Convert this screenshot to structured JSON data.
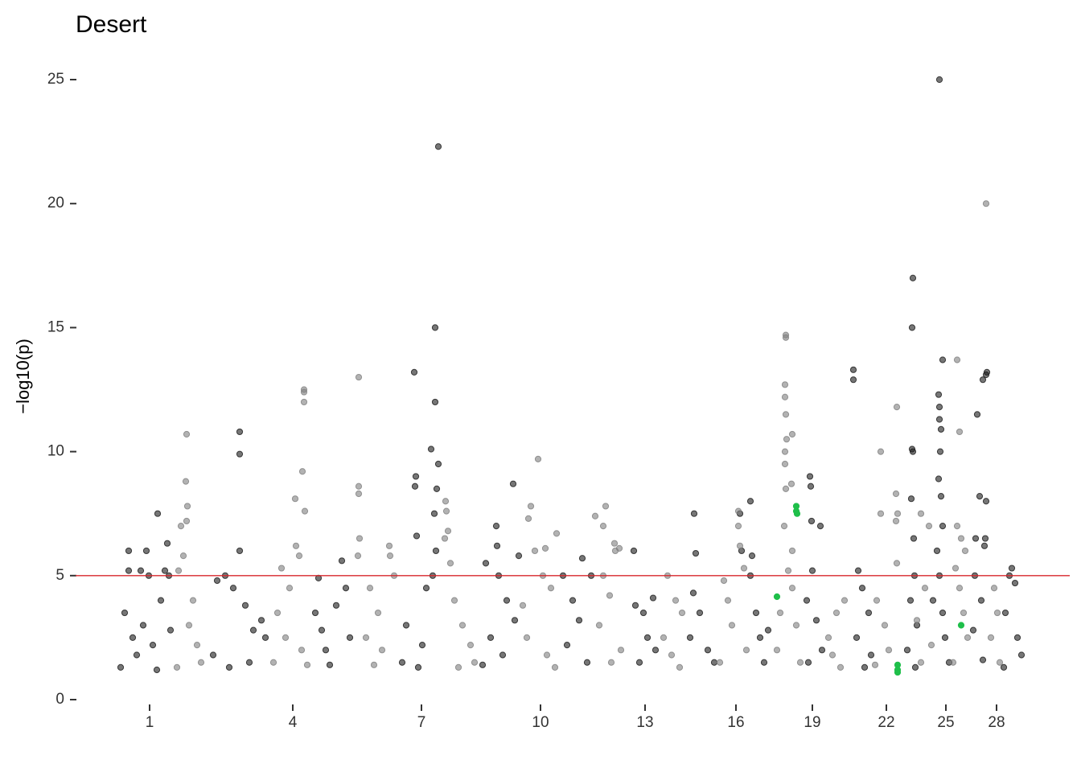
{
  "chart_data": {
    "type": "scatter",
    "title": "Desert",
    "y_label": "−log10(p)",
    "xlim": [
      140,
      1280
    ],
    "xticks": [
      {
        "value": 186,
        "label": "1"
      },
      {
        "value": 364,
        "label": "4"
      },
      {
        "value": 524,
        "label": "7"
      },
      {
        "value": 672,
        "label": "10"
      },
      {
        "value": 802,
        "label": "13"
      },
      {
        "value": 915,
        "label": "16"
      },
      {
        "value": 1010,
        "label": "19"
      },
      {
        "value": 1102,
        "label": "22"
      },
      {
        "value": 1176,
        "label": "25"
      },
      {
        "value": 1239,
        "label": "28"
      }
    ],
    "ylim": [
      0,
      26
    ],
    "yticks": [
      0,
      5,
      10,
      15,
      20,
      25
    ],
    "threshold": {
      "value": 5,
      "color": "#d7262b"
    },
    "series": [
      {
        "color": "#1a1a1a",
        "x": [
          160,
          160,
          175,
          182,
          185,
          196,
          205,
          208,
          210,
          155,
          165,
          170,
          178,
          190,
          200,
          212,
          150,
          195,
          298,
          298,
          298,
          270,
          280,
          290,
          305,
          315,
          325,
          265,
          285,
          310,
          330,
          396,
          392,
          400,
          405,
          425,
          430,
          418,
          435,
          410,
          515,
          517,
          516,
          518,
          545,
          541,
          541,
          536,
          545,
          543,
          540,
          542,
          530,
          538,
          505,
          525,
          500,
          520,
          604,
          617,
          618,
          620,
          630,
          638,
          645,
          610,
          625,
          600,
          640,
          700,
          724,
          735,
          712,
          720,
          705,
          730,
          790,
          800,
          812,
          788,
          815,
          795,
          805,
          863,
          865,
          862,
          870,
          858,
          880,
          888,
          920,
          922,
          933,
          935,
          933,
          940,
          945,
          955,
          950,
          1007,
          1008,
          1009,
          1020,
          1010,
          1003,
          1015,
          1022,
          1005,
          1061,
          1061,
          1067,
          1072,
          1080,
          1065,
          1083,
          1075,
          1135,
          1134,
          1134,
          1135,
          1133,
          1136,
          1137,
          1132,
          1140,
          1128,
          1138,
          1168,
          1172,
          1167,
          1168,
          1168,
          1170,
          1169,
          1167,
          1170,
          1172,
          1165,
          1168,
          1172,
          1175,
          1180,
          1160,
          1215,
          1218,
          1225,
          1224,
          1213,
          1212,
          1220,
          1210,
          1222,
          1227,
          1226,
          1222,
          1226,
          1258,
          1262,
          1255,
          1250,
          1265,
          1270,
          1248
        ],
        "values": [
          6.0,
          5.2,
          5.2,
          6.0,
          5.0,
          7.5,
          5.2,
          6.3,
          5.0,
          3.5,
          2.5,
          1.8,
          3.0,
          2.2,
          4.0,
          2.8,
          1.3,
          1.2,
          10.8,
          9.9,
          6.0,
          4.8,
          5.0,
          4.5,
          3.8,
          2.8,
          3.2,
          1.8,
          1.3,
          1.5,
          2.5,
          4.9,
          3.5,
          2.8,
          2.0,
          5.6,
          4.5,
          3.8,
          2.5,
          1.4,
          13.2,
          9.0,
          8.6,
          6.6,
          22.3,
          15.0,
          12.0,
          10.1,
          9.5,
          8.5,
          7.5,
          6.0,
          4.5,
          5.0,
          3.0,
          2.2,
          1.5,
          1.3,
          5.5,
          7.0,
          6.2,
          5.0,
          4.0,
          8.7,
          5.8,
          2.5,
          1.8,
          1.4,
          3.2,
          5.0,
          5.7,
          5.0,
          4.0,
          3.2,
          2.2,
          1.5,
          3.8,
          3.5,
          4.1,
          6.0,
          2.0,
          1.5,
          2.5,
          7.5,
          5.9,
          4.3,
          3.5,
          2.5,
          2.0,
          1.5,
          7.5,
          6.0,
          8.0,
          5.8,
          5.0,
          3.5,
          2.5,
          2.8,
          1.5,
          9.0,
          8.6,
          7.2,
          7.0,
          5.2,
          4.0,
          3.2,
          2.0,
          1.5,
          13.3,
          12.9,
          5.2,
          4.5,
          3.5,
          2.5,
          1.8,
          1.3,
          17.0,
          15.0,
          10.1,
          10.0,
          8.1,
          6.5,
          5.0,
          4.0,
          3.0,
          2.0,
          1.3,
          25.0,
          13.7,
          12.3,
          11.8,
          11.3,
          10.9,
          10.0,
          8.9,
          8.2,
          7.0,
          6.0,
          5.0,
          3.5,
          2.5,
          1.5,
          4.0,
          11.5,
          8.2,
          6.5,
          6.2,
          6.5,
          5.0,
          4.0,
          2.8,
          1.6,
          13.2,
          13.1,
          12.9,
          8.0,
          5.3,
          4.7,
          5.0,
          3.5,
          2.5,
          1.8,
          1.3
        ]
      },
      {
        "color": "#7f7f7f",
        "x": [
          232,
          231,
          233,
          232,
          225,
          228,
          222,
          240,
          235,
          245,
          250,
          220,
          378,
          378,
          378,
          376,
          379,
          367,
          368,
          372,
          350,
          360,
          345,
          355,
          375,
          382,
          340,
          446,
          446,
          446,
          447,
          445,
          484,
          485,
          490,
          460,
          470,
          455,
          475,
          465,
          554,
          555,
          557,
          553,
          560,
          565,
          575,
          585,
          590,
          570,
          669,
          660,
          657,
          665,
          678,
          692,
          675,
          685,
          650,
          655,
          680,
          690,
          753,
          750,
          740,
          764,
          765,
          770,
          750,
          758,
          745,
          772,
          760,
          830,
          840,
          848,
          825,
          835,
          845,
          918,
          918,
          920,
          925,
          900,
          905,
          910,
          928,
          895,
          977,
          977,
          976,
          976,
          977,
          978,
          976,
          985,
          976,
          977,
          984,
          975,
          985,
          980,
          985,
          970,
          990,
          966,
          995,
          1040,
          1030,
          1050,
          1035,
          1045,
          1095,
          1095,
          1090,
          1100,
          1105,
          1088,
          1115,
          1114,
          1116,
          1114,
          1115,
          1145,
          1155,
          1150,
          1140,
          1158,
          1145,
          1190,
          1193,
          1190,
          1195,
          1200,
          1188,
          1193,
          1198,
          1203,
          1185,
          1226,
          1236,
          1240,
          1232,
          1243
        ],
        "values": [
          10.7,
          8.8,
          7.8,
          7.2,
          7.0,
          5.8,
          5.2,
          4.0,
          3.0,
          2.2,
          1.5,
          1.3,
          12.5,
          12.4,
          12.0,
          9.2,
          7.6,
          8.1,
          6.2,
          5.8,
          5.3,
          4.5,
          3.5,
          2.5,
          2.0,
          1.4,
          1.5,
          13.0,
          8.6,
          8.3,
          6.5,
          5.8,
          6.2,
          5.8,
          5.0,
          4.5,
          3.5,
          2.5,
          2.0,
          1.4,
          8.0,
          7.6,
          6.8,
          6.5,
          5.5,
          4.0,
          3.0,
          2.2,
          1.5,
          1.3,
          9.7,
          7.8,
          7.3,
          6.0,
          6.1,
          6.7,
          5.0,
          4.5,
          3.8,
          2.5,
          1.8,
          1.3,
          7.8,
          7.0,
          7.4,
          6.3,
          6.0,
          6.1,
          5.0,
          4.2,
          3.0,
          2.0,
          1.5,
          5.0,
          4.0,
          3.5,
          2.5,
          1.8,
          1.3,
          7.6,
          7.0,
          6.2,
          5.3,
          4.8,
          4.0,
          3.0,
          2.0,
          1.5,
          14.7,
          14.6,
          12.7,
          12.2,
          11.5,
          10.5,
          10.0,
          10.7,
          9.5,
          8.5,
          8.7,
          7.0,
          6.0,
          5.2,
          4.5,
          3.5,
          3.0,
          2.0,
          1.5,
          3.5,
          2.5,
          4.0,
          1.8,
          1.3,
          10.0,
          7.5,
          4.0,
          3.0,
          2.0,
          1.4,
          11.8,
          8.3,
          7.5,
          7.2,
          5.5,
          7.5,
          7.0,
          4.5,
          3.2,
          2.2,
          1.5,
          13.7,
          10.8,
          7.0,
          6.5,
          6.0,
          5.3,
          4.5,
          3.5,
          2.5,
          1.5,
          20.0,
          4.5,
          3.5,
          2.5,
          1.5
        ]
      },
      {
        "color": "#1fbf4a",
        "x": [
          966,
          990,
          990,
          991,
          1116,
          1116,
          1116,
          1195
        ],
        "values": [
          4.15,
          7.8,
          7.6,
          7.5,
          1.4,
          1.2,
          1.1,
          3.0
        ]
      }
    ]
  }
}
